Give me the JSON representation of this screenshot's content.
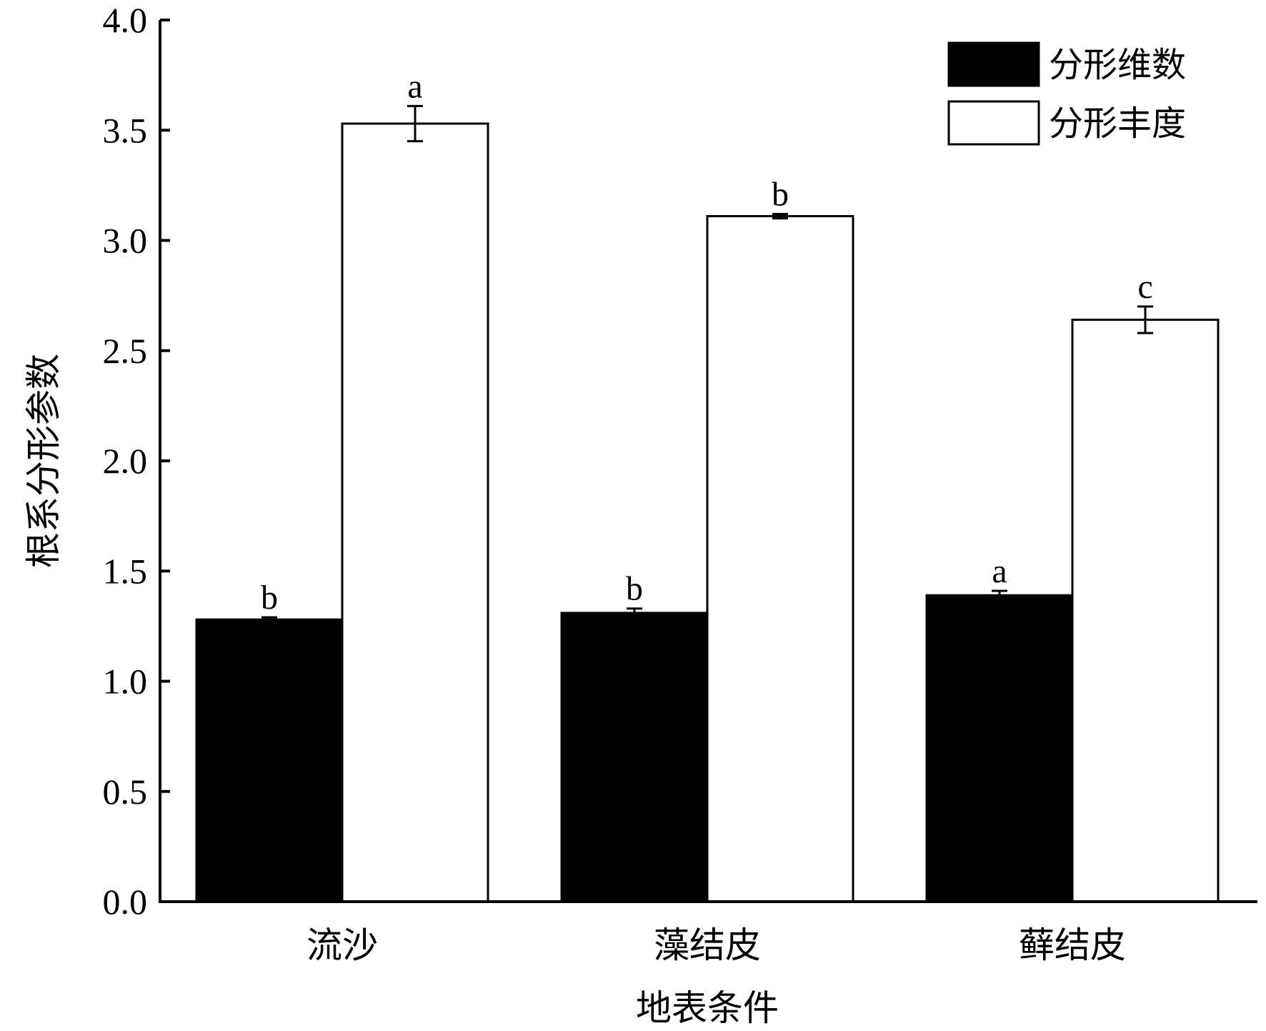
{
  "chart_data": {
    "type": "bar",
    "xlabel": "地表条件",
    "ylabel": "根系分形参数",
    "categories": [
      "流沙",
      "藻结皮",
      "藓结皮"
    ],
    "ylim": [
      0,
      4.0
    ],
    "yticks": [
      "0.0",
      "0.5",
      "1.0",
      "1.5",
      "2.0",
      "2.5",
      "3.0",
      "3.5",
      "4.0"
    ],
    "legend_position": "top-right",
    "grid": false,
    "series": [
      {
        "name": "分形维数",
        "color": "#000000",
        "values": [
          1.28,
          1.31,
          1.39
        ],
        "errors": [
          0.01,
          0.02,
          0.02
        ],
        "significance": [
          "b",
          "b",
          "a"
        ]
      },
      {
        "name": "分形丰度",
        "color": "#ffffff",
        "values": [
          3.53,
          3.11,
          2.64
        ],
        "errors": [
          0.08,
          0.01,
          0.06
        ],
        "significance": [
          "a",
          "b",
          "c"
        ]
      }
    ]
  }
}
